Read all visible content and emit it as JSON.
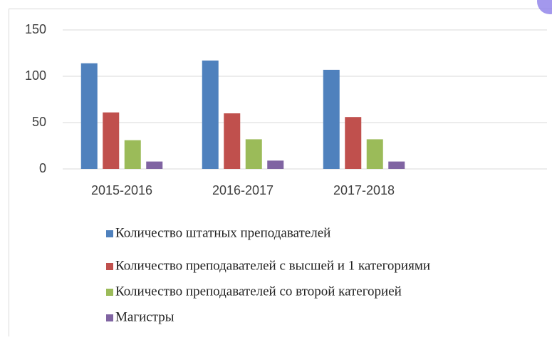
{
  "chart_data": {
    "type": "bar",
    "categories": [
      "2015-2016",
      "2016-2017",
      "2017-2018",
      null
    ],
    "series": [
      {
        "name": "Количество штатных преподавателей",
        "color": "#4f81bd",
        "values": [
          114,
          117,
          107,
          null
        ]
      },
      {
        "name": "Количество преподавателей с высшей и 1 категориями",
        "color": "#c0504d",
        "values": [
          61,
          60,
          56,
          null
        ]
      },
      {
        "name": "Количество преподавателей со второй категорией",
        "color": "#9bbb59",
        "values": [
          31,
          32,
          32,
          null
        ]
      },
      {
        "name": "Магистры",
        "color": "#8064a2",
        "values": [
          8,
          9,
          8,
          null
        ]
      }
    ],
    "ylim": [
      0,
      150
    ],
    "yticks": [
      0,
      50,
      100,
      150
    ],
    "grid": true,
    "legend": "bottom"
  }
}
